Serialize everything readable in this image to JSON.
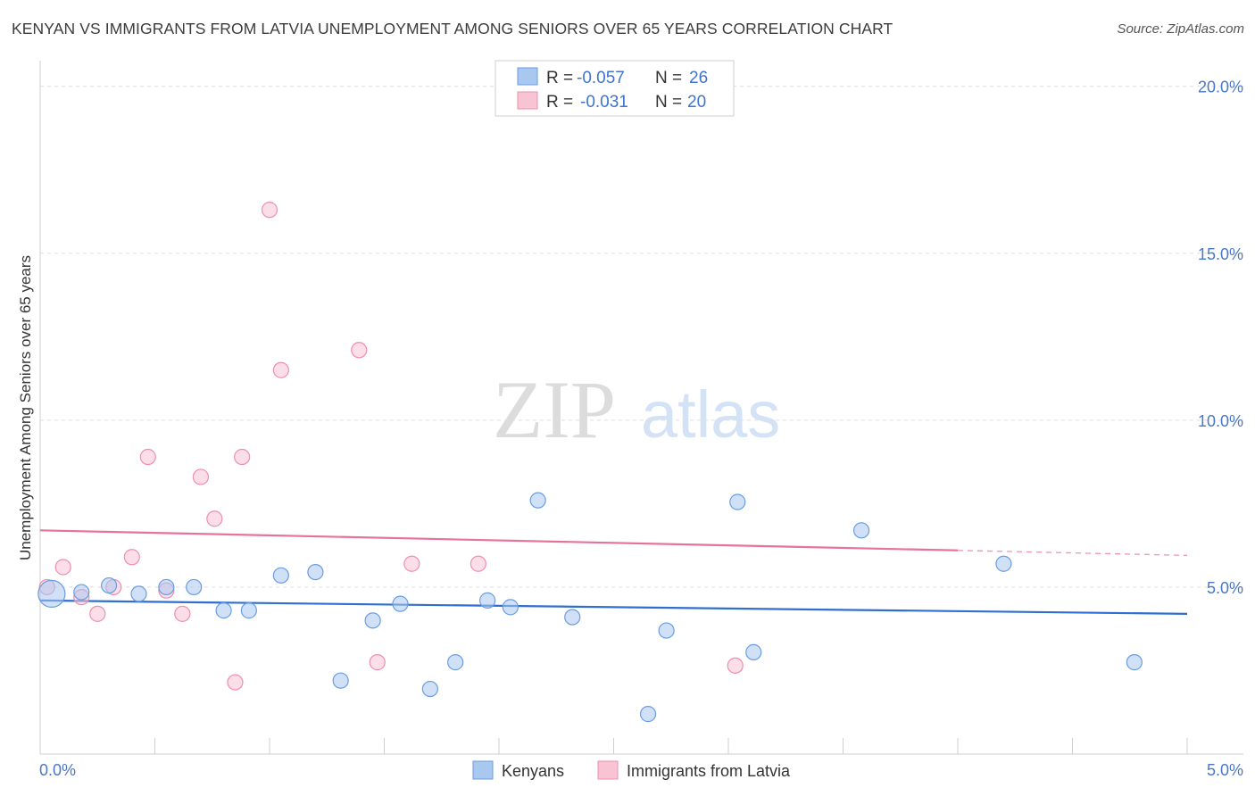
{
  "title": "KENYAN VS IMMIGRANTS FROM LATVIA UNEMPLOYMENT AMONG SENIORS OVER 65 YEARS CORRELATION CHART",
  "source": "Source: ZipAtlas.com",
  "watermark": {
    "zip": "ZIP",
    "atlas": "atlas"
  },
  "colors": {
    "kenyans_fill": "#a9c8f0",
    "kenyans_stroke": "#6a9de0",
    "kenyans_line": "#2f6fcf",
    "latvia_fill": "#f8c3d3",
    "latvia_stroke": "#ee8fae",
    "latvia_line": "#e5739a",
    "tick_label": "#4a78c8"
  },
  "chart_data": {
    "type": "scatter",
    "title": "KENYAN VS IMMIGRANTS FROM LATVIA UNEMPLOYMENT AMONG SENIORS OVER 65 YEARS CORRELATION CHART",
    "xlabel": "",
    "ylabel": "Unemployment Among Seniors over 65 years",
    "xlim": [
      0,
      5
    ],
    "ylim": [
      0,
      20.5
    ],
    "x_tick_labels": [
      "0.0%",
      "5.0%"
    ],
    "y_ticks": [
      5,
      10,
      15,
      20
    ],
    "y_tick_labels": [
      "5.0%",
      "10.0%",
      "15.0%",
      "20.0%"
    ],
    "grid": true,
    "legend_top": [
      {
        "series": "Kenyans",
        "r_label": "R =",
        "r_value": "-0.057",
        "n_label": "N =",
        "n_value": "26"
      },
      {
        "series": "Immigrants from Latvia",
        "r_label": "R =",
        "r_value": "-0.031",
        "n_label": "N =",
        "n_value": "20"
      }
    ],
    "series": [
      {
        "name": "Kenyans",
        "points": [
          {
            "x": 0.05,
            "y": 4.8,
            "size": "large"
          },
          {
            "x": 0.18,
            "y": 4.85
          },
          {
            "x": 0.3,
            "y": 5.05
          },
          {
            "x": 0.43,
            "y": 4.8
          },
          {
            "x": 0.55,
            "y": 5.0
          },
          {
            "x": 0.67,
            "y": 5.0
          },
          {
            "x": 0.8,
            "y": 4.3
          },
          {
            "x": 0.91,
            "y": 4.3
          },
          {
            "x": 1.05,
            "y": 5.35
          },
          {
            "x": 1.2,
            "y": 5.45
          },
          {
            "x": 1.31,
            "y": 2.2
          },
          {
            "x": 1.45,
            "y": 4.0
          },
          {
            "x": 1.57,
            "y": 4.5
          },
          {
            "x": 1.7,
            "y": 1.95
          },
          {
            "x": 1.81,
            "y": 2.75
          },
          {
            "x": 1.95,
            "y": 4.6
          },
          {
            "x": 2.05,
            "y": 4.4
          },
          {
            "x": 2.17,
            "y": 7.6
          },
          {
            "x": 2.32,
            "y": 4.1
          },
          {
            "x": 2.65,
            "y": 1.2
          },
          {
            "x": 2.73,
            "y": 3.7
          },
          {
            "x": 3.04,
            "y": 7.55
          },
          {
            "x": 3.11,
            "y": 3.05
          },
          {
            "x": 3.58,
            "y": 6.7
          },
          {
            "x": 4.2,
            "y": 5.7
          },
          {
            "x": 4.77,
            "y": 2.75
          }
        ],
        "trend": {
          "x0": 0.0,
          "y0": 4.6,
          "x1": 5.0,
          "y1": 4.2
        }
      },
      {
        "name": "Immigrants from Latvia",
        "points": [
          {
            "x": 0.03,
            "y": 5.0
          },
          {
            "x": 0.1,
            "y": 5.6
          },
          {
            "x": 0.18,
            "y": 4.7
          },
          {
            "x": 0.25,
            "y": 4.2
          },
          {
            "x": 0.4,
            "y": 5.9
          },
          {
            "x": 0.32,
            "y": 5.0
          },
          {
            "x": 0.47,
            "y": 8.9
          },
          {
            "x": 0.55,
            "y": 4.9
          },
          {
            "x": 0.62,
            "y": 4.2
          },
          {
            "x": 0.7,
            "y": 8.3
          },
          {
            "x": 0.76,
            "y": 7.05
          },
          {
            "x": 0.85,
            "y": 2.15
          },
          {
            "x": 0.88,
            "y": 8.9
          },
          {
            "x": 1.0,
            "y": 16.3
          },
          {
            "x": 1.05,
            "y": 11.5
          },
          {
            "x": 1.39,
            "y": 12.1
          },
          {
            "x": 1.47,
            "y": 2.75
          },
          {
            "x": 1.62,
            "y": 5.7
          },
          {
            "x": 1.91,
            "y": 5.7
          },
          {
            "x": 3.03,
            "y": 2.65
          }
        ],
        "trend": {
          "x0": 0.0,
          "y0": 6.7,
          "x1": 4.0,
          "y1": 6.1
        },
        "trend_dashed": {
          "x0": 4.0,
          "y0": 6.1,
          "x1": 5.0,
          "y1": 5.95
        }
      }
    ]
  }
}
